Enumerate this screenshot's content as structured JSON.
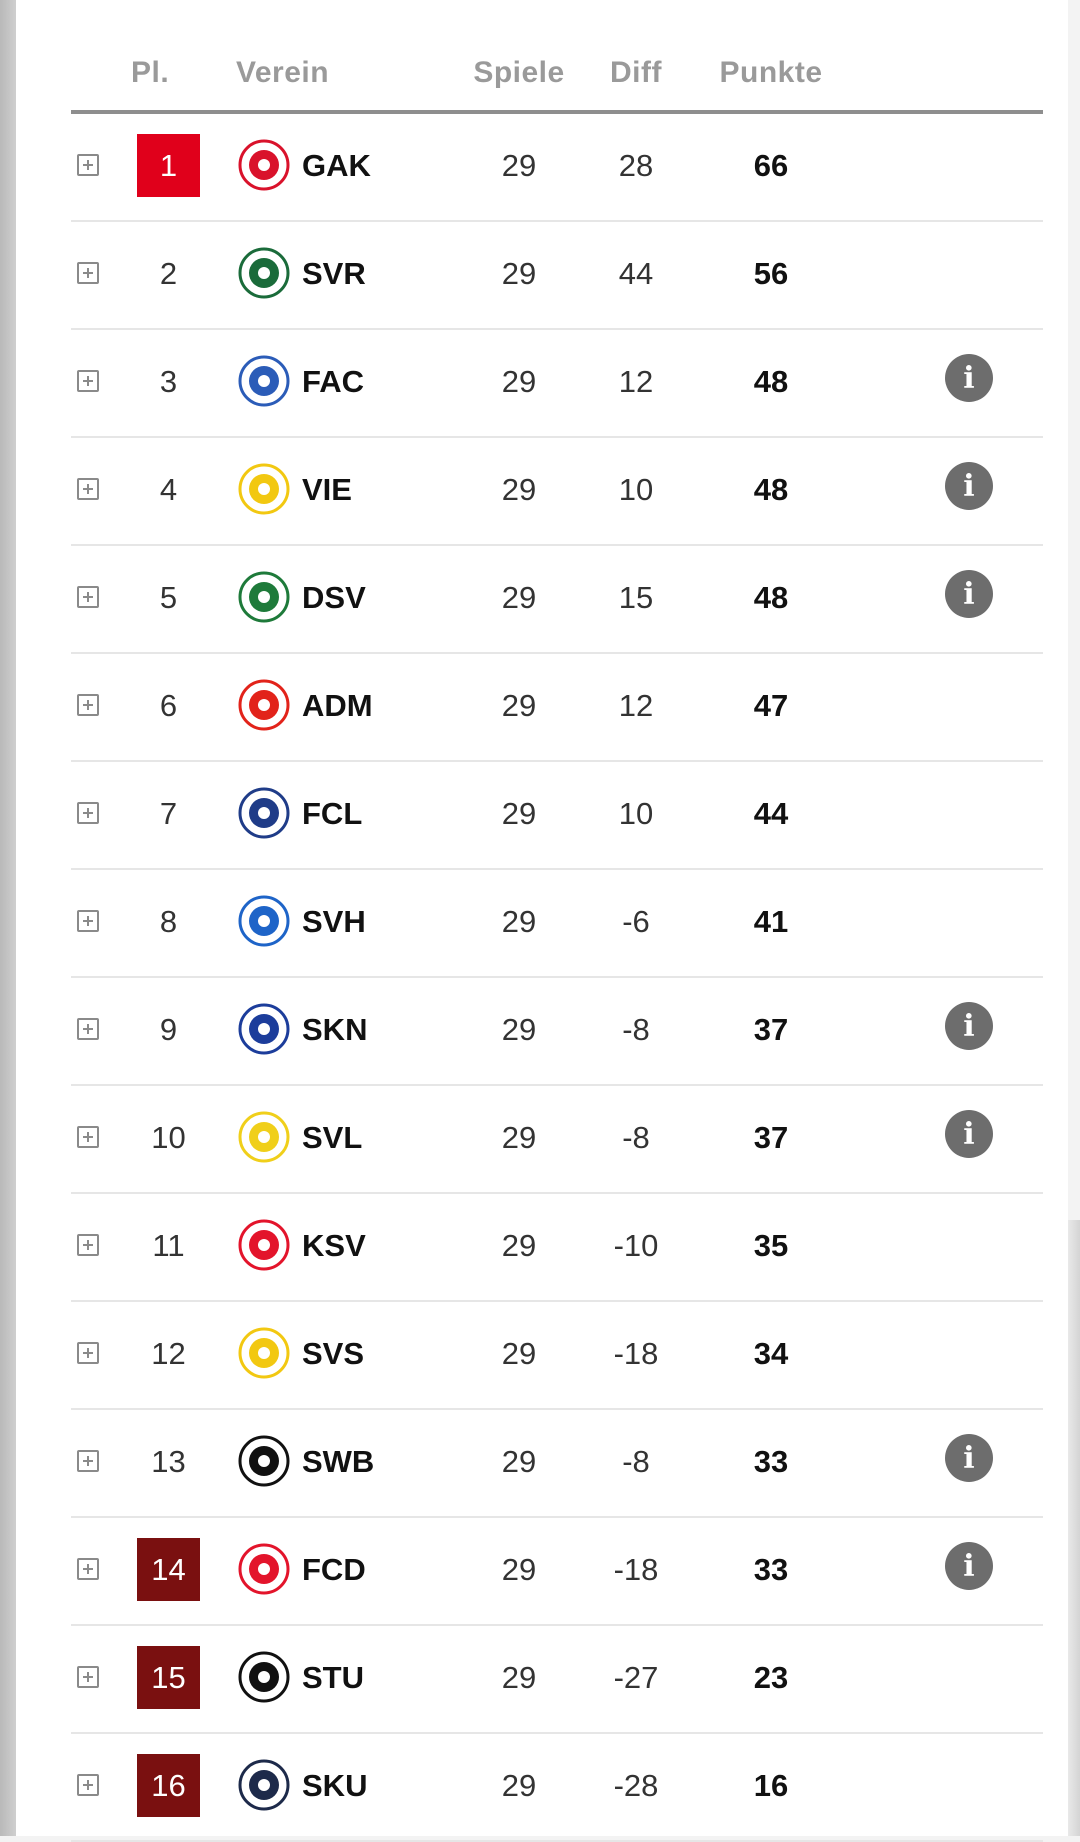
{
  "header": {
    "pl": "Pl.",
    "verein": "Verein",
    "spiele": "Spiele",
    "diff": "Diff",
    "punkte": "Punkte"
  },
  "info_glyph": "i",
  "colors": {
    "promotion": "#e0001b",
    "relegation": "#7a1010",
    "info_icon": "#6d6d6d"
  },
  "rows": [
    {
      "rank": "1",
      "team": "GAK",
      "spiele": "29",
      "diff": "28",
      "punkte": "66",
      "zone": "promo",
      "info": false,
      "logo_icon": "gak-crest-icon",
      "logo_color": "#d9122b"
    },
    {
      "rank": "2",
      "team": "SVR",
      "spiele": "29",
      "diff": "44",
      "punkte": "56",
      "zone": "",
      "info": false,
      "logo_icon": "svr-crest-icon",
      "logo_color": "#1a6b3a"
    },
    {
      "rank": "3",
      "team": "FAC",
      "spiele": "29",
      "diff": "12",
      "punkte": "48",
      "zone": "",
      "info": true,
      "logo_icon": "fac-crest-icon",
      "logo_color": "#2b5cb8"
    },
    {
      "rank": "4",
      "team": "VIE",
      "spiele": "29",
      "diff": "10",
      "punkte": "48",
      "zone": "",
      "info": true,
      "logo_icon": "vie-crest-icon",
      "logo_color": "#f2c811"
    },
    {
      "rank": "5",
      "team": "DSV",
      "spiele": "29",
      "diff": "15",
      "punkte": "48",
      "zone": "",
      "info": true,
      "logo_icon": "dsv-crest-icon",
      "logo_color": "#1e7a3a"
    },
    {
      "rank": "6",
      "team": "ADM",
      "spiele": "29",
      "diff": "12",
      "punkte": "47",
      "zone": "",
      "info": false,
      "logo_icon": "adm-crest-icon",
      "logo_color": "#e2231a"
    },
    {
      "rank": "7",
      "team": "FCL",
      "spiele": "29",
      "diff": "10",
      "punkte": "44",
      "zone": "",
      "info": false,
      "logo_icon": "fcl-crest-icon",
      "logo_color": "#1f3c88"
    },
    {
      "rank": "8",
      "team": "SVH",
      "spiele": "29",
      "diff": "-6",
      "punkte": "41",
      "zone": "",
      "info": false,
      "logo_icon": "svh-crest-icon",
      "logo_color": "#1e64c8"
    },
    {
      "rank": "9",
      "team": "SKN",
      "spiele": "29",
      "diff": "-8",
      "punkte": "37",
      "zone": "",
      "info": true,
      "logo_icon": "skn-crest-icon",
      "logo_color": "#1c3d9b"
    },
    {
      "rank": "10",
      "team": "SVL",
      "spiele": "29",
      "diff": "-8",
      "punkte": "37",
      "zone": "",
      "info": true,
      "logo_icon": "svl-crest-icon",
      "logo_color": "#f0cf1a"
    },
    {
      "rank": "11",
      "team": "KSV",
      "spiele": "29",
      "diff": "-10",
      "punkte": "35",
      "zone": "",
      "info": false,
      "logo_icon": "ksv-crest-icon",
      "logo_color": "#e3142b"
    },
    {
      "rank": "12",
      "team": "SVS",
      "spiele": "29",
      "diff": "-18",
      "punkte": "34",
      "zone": "",
      "info": false,
      "logo_icon": "svs-crest-icon",
      "logo_color": "#f2c811"
    },
    {
      "rank": "13",
      "team": "SWB",
      "spiele": "29",
      "diff": "-8",
      "punkte": "33",
      "zone": "",
      "info": true,
      "logo_icon": "swb-crest-icon",
      "logo_color": "#111111"
    },
    {
      "rank": "14",
      "team": "FCD",
      "spiele": "29",
      "diff": "-18",
      "punkte": "33",
      "zone": "releg",
      "info": true,
      "logo_icon": "fcd-crest-icon",
      "logo_color": "#e3142b"
    },
    {
      "rank": "15",
      "team": "STU",
      "spiele": "29",
      "diff": "-27",
      "punkte": "23",
      "zone": "releg",
      "info": false,
      "logo_icon": "stu-crest-icon",
      "logo_color": "#111111"
    },
    {
      "rank": "16",
      "team": "SKU",
      "spiele": "29",
      "diff": "-28",
      "punkte": "16",
      "zone": "releg",
      "info": false,
      "logo_icon": "sku-crest-icon",
      "logo_color": "#1d2a4a"
    }
  ]
}
